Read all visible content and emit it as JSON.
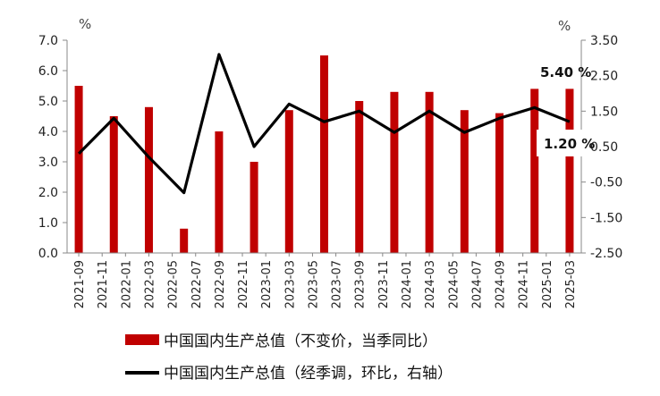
{
  "chart_data": {
    "type": "bar",
    "categories": [
      "2021-09",
      "2021-11",
      "2022-01",
      "2022-03",
      "2022-05",
      "2022-07",
      "2022-09",
      "2022-11",
      "2023-01",
      "2023-03",
      "2023-05",
      "2023-07",
      "2023-09",
      "2023-11",
      "2024-01",
      "2024-03",
      "2024-05",
      "2024-07",
      "2024-09",
      "2024-11",
      "2025-01",
      "2025-03"
    ],
    "left_axis": {
      "unit": "%",
      "ylim": [
        0,
        7
      ],
      "ticks": [
        "7.0",
        "6.0",
        "5.0",
        "4.0",
        "3.0",
        "2.0",
        "1.0",
        "0.0"
      ]
    },
    "right_axis": {
      "unit": "%",
      "ylim": [
        -2.5,
        3.5
      ],
      "ticks": [
        "3.50",
        "2.50",
        "1.50",
        "0.50",
        "-0.50",
        "-1.50",
        "-2.50"
      ]
    },
    "series": [
      {
        "name": "中国国内生产总值（不变价，当季同比）",
        "type": "bar",
        "axis": "left",
        "color": "#c00000",
        "points": [
          {
            "x": "2021-09",
            "y": 5.5
          },
          {
            "x": "2021-12",
            "y": 4.5
          },
          {
            "x": "2022-03",
            "y": 4.8
          },
          {
            "x": "2022-06",
            "y": 0.8
          },
          {
            "x": "2022-09",
            "y": 4.0
          },
          {
            "x": "2022-12",
            "y": 3.0
          },
          {
            "x": "2023-03",
            "y": 4.7
          },
          {
            "x": "2023-06",
            "y": 6.5
          },
          {
            "x": "2023-09",
            "y": 5.0
          },
          {
            "x": "2023-12",
            "y": 5.3
          },
          {
            "x": "2024-03",
            "y": 5.3
          },
          {
            "x": "2024-06",
            "y": 4.7
          },
          {
            "x": "2024-09",
            "y": 4.6
          },
          {
            "x": "2024-12",
            "y": 5.4
          },
          {
            "x": "2025-03",
            "y": 5.4
          }
        ]
      },
      {
        "name": "中国国内生产总值（经季调，环比，右轴）",
        "type": "line",
        "axis": "right",
        "color": "#000000",
        "points": [
          {
            "x": "2021-09",
            "y": 0.3
          },
          {
            "x": "2021-12",
            "y": 1.3
          },
          {
            "x": "2022-03",
            "y": 0.2
          },
          {
            "x": "2022-06",
            "y": -0.8
          },
          {
            "x": "2022-09",
            "y": 3.1
          },
          {
            "x": "2022-12",
            "y": 0.5
          },
          {
            "x": "2023-03",
            "y": 1.7
          },
          {
            "x": "2023-06",
            "y": 1.2
          },
          {
            "x": "2023-09",
            "y": 1.5
          },
          {
            "x": "2023-12",
            "y": 0.9
          },
          {
            "x": "2024-03",
            "y": 1.5
          },
          {
            "x": "2024-06",
            "y": 0.9
          },
          {
            "x": "2024-09",
            "y": 1.3
          },
          {
            "x": "2024-12",
            "y": 1.6
          },
          {
            "x": "2025-03",
            "y": 1.2
          }
        ]
      }
    ],
    "annotations": [
      {
        "text": "5.40 %",
        "series": 0,
        "x": "2025-03"
      },
      {
        "text": "1.20 %",
        "series": 1,
        "x": "2025-03"
      }
    ],
    "grid": false
  }
}
